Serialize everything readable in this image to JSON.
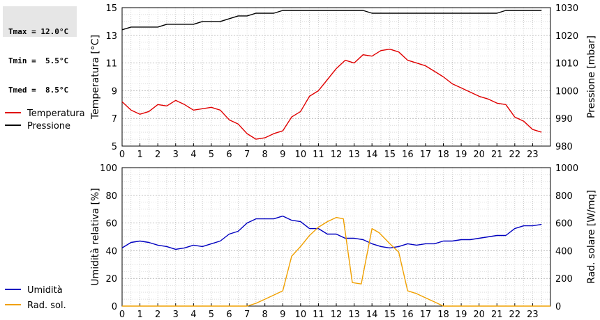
{
  "stats": {
    "tmax": "Tmax = 12.0°C",
    "tmin": "Tmin =  5.5°C",
    "tmed": "Tmed =  8.5°C"
  },
  "chart_data": [
    {
      "type": "line",
      "xlim": [
        0,
        24
      ],
      "x_ticks": [
        0,
        1,
        2,
        3,
        4,
        5,
        6,
        7,
        8,
        9,
        10,
        11,
        12,
        13,
        14,
        15,
        16,
        17,
        18,
        19,
        20,
        21,
        22,
        23
      ],
      "grid": true,
      "legend": "left",
      "ylabel_left": "Temperatura [°C]",
      "ylim_left": [
        5,
        15
      ],
      "yticks_left": [
        5,
        7,
        9,
        11,
        13,
        15
      ],
      "ylabel_right": "Pressione [mbar]",
      "ylim_right": [
        980,
        1030
      ],
      "yticks_right": [
        980,
        990,
        1000,
        1010,
        1020,
        1030
      ],
      "series": [
        {
          "name": "Temperatura",
          "axis": "left",
          "color": "#e00000",
          "x": [
            0,
            0.5,
            1,
            1.5,
            2,
            2.5,
            3,
            3.5,
            4,
            4.5,
            5,
            5.5,
            6,
            6.5,
            7,
            7.5,
            8,
            8.5,
            9,
            9.5,
            10,
            10.5,
            11,
            11.5,
            12,
            12.5,
            13,
            13.5,
            14,
            14.5,
            15,
            15.5,
            16,
            16.5,
            17,
            17.5,
            18,
            18.5,
            19,
            19.5,
            20,
            20.5,
            21,
            21.5,
            22,
            22.5,
            23,
            23.5
          ],
          "values": [
            8.2,
            7.6,
            7.3,
            7.5,
            8.0,
            7.9,
            8.3,
            8.0,
            7.6,
            7.7,
            7.8,
            7.6,
            6.9,
            6.6,
            5.9,
            5.5,
            5.6,
            5.9,
            6.1,
            7.1,
            7.5,
            8.6,
            9.0,
            9.8,
            10.6,
            11.2,
            11.0,
            11.6,
            11.5,
            11.9,
            12.0,
            11.8,
            11.2,
            11.0,
            10.8,
            10.4,
            10.0,
            9.5,
            9.2,
            8.9,
            8.6,
            8.4,
            8.1,
            8.0,
            7.1,
            6.8,
            6.2,
            6.0
          ]
        },
        {
          "name": "Pressione",
          "axis": "right",
          "color": "#000000",
          "x": [
            0,
            0.5,
            1,
            1.5,
            2,
            2.5,
            3,
            3.5,
            4,
            4.5,
            5,
            5.5,
            6,
            6.5,
            7,
            7.5,
            8,
            8.5,
            9,
            9.5,
            10,
            10.5,
            11,
            11.5,
            12,
            12.5,
            13,
            13.5,
            14,
            14.5,
            15,
            15.5,
            16,
            16.5,
            17,
            17.5,
            18,
            18.5,
            19,
            19.5,
            20,
            20.5,
            21,
            21.5,
            22,
            22.5,
            23,
            23.5
          ],
          "values": [
            1022,
            1023,
            1023,
            1023,
            1023,
            1024,
            1024,
            1024,
            1024,
            1025,
            1025,
            1025,
            1026,
            1027,
            1027,
            1028,
            1028,
            1028,
            1029,
            1029,
            1029,
            1029,
            1029,
            1029,
            1029,
            1029,
            1029,
            1029,
            1028,
            1028,
            1028,
            1028,
            1028,
            1028,
            1028,
            1028,
            1028,
            1028,
            1028,
            1028,
            1028,
            1028,
            1028,
            1029,
            1029,
            1029,
            1029,
            1029
          ]
        }
      ]
    },
    {
      "type": "line",
      "xlim": [
        0,
        24
      ],
      "x_ticks": [
        0,
        1,
        2,
        3,
        4,
        5,
        6,
        7,
        8,
        9,
        10,
        11,
        12,
        13,
        14,
        15,
        16,
        17,
        18,
        19,
        20,
        21,
        22,
        23
      ],
      "grid": true,
      "legend": "left",
      "ylabel_left": "Umidità relativa [%]",
      "ylim_left": [
        0,
        100
      ],
      "yticks_left": [
        0,
        20,
        40,
        60,
        80,
        100
      ],
      "ylabel_right": "Rad. solare [W/mq]",
      "ylim_right": [
        0,
        1000
      ],
      "yticks_right": [
        0,
        200,
        400,
        600,
        800,
        1000
      ],
      "series": [
        {
          "name": "Umidità",
          "axis": "left",
          "color": "#0000c0",
          "x": [
            0,
            0.5,
            1,
            1.5,
            2,
            2.5,
            3,
            3.5,
            4,
            4.5,
            5,
            5.5,
            6,
            6.5,
            7,
            7.5,
            8,
            8.5,
            9,
            9.5,
            10,
            10.5,
            11,
            11.5,
            12,
            12.5,
            13,
            13.5,
            14,
            14.5,
            15,
            15.5,
            16,
            16.5,
            17,
            17.5,
            18,
            18.5,
            19,
            19.5,
            20,
            20.5,
            21,
            21.5,
            22,
            22.5,
            23,
            23.5
          ],
          "values": [
            42,
            46,
            47,
            46,
            44,
            43,
            41,
            42,
            44,
            43,
            45,
            47,
            52,
            54,
            60,
            63,
            63,
            63,
            65,
            62,
            61,
            56,
            56,
            52,
            52,
            49,
            49,
            48,
            45,
            43,
            42,
            43,
            45,
            44,
            45,
            45,
            47,
            47,
            48,
            48,
            49,
            50,
            51,
            51,
            56,
            58,
            58,
            59
          ]
        },
        {
          "name": "Rad. sol.",
          "axis": "right",
          "color": "#f0a000",
          "x": [
            0,
            7,
            7.5,
            8,
            8.5,
            9,
            9.5,
            10,
            10.5,
            11,
            11.5,
            12,
            12.4,
            12.9,
            13.4,
            14,
            14.4,
            15,
            15.5,
            16,
            16.5,
            17,
            17.5,
            18,
            24
          ],
          "values": [
            0,
            0,
            20,
            50,
            80,
            110,
            360,
            430,
            510,
            570,
            610,
            640,
            630,
            170,
            160,
            560,
            530,
            450,
            390,
            110,
            90,
            60,
            30,
            0,
            0
          ]
        }
      ]
    }
  ]
}
